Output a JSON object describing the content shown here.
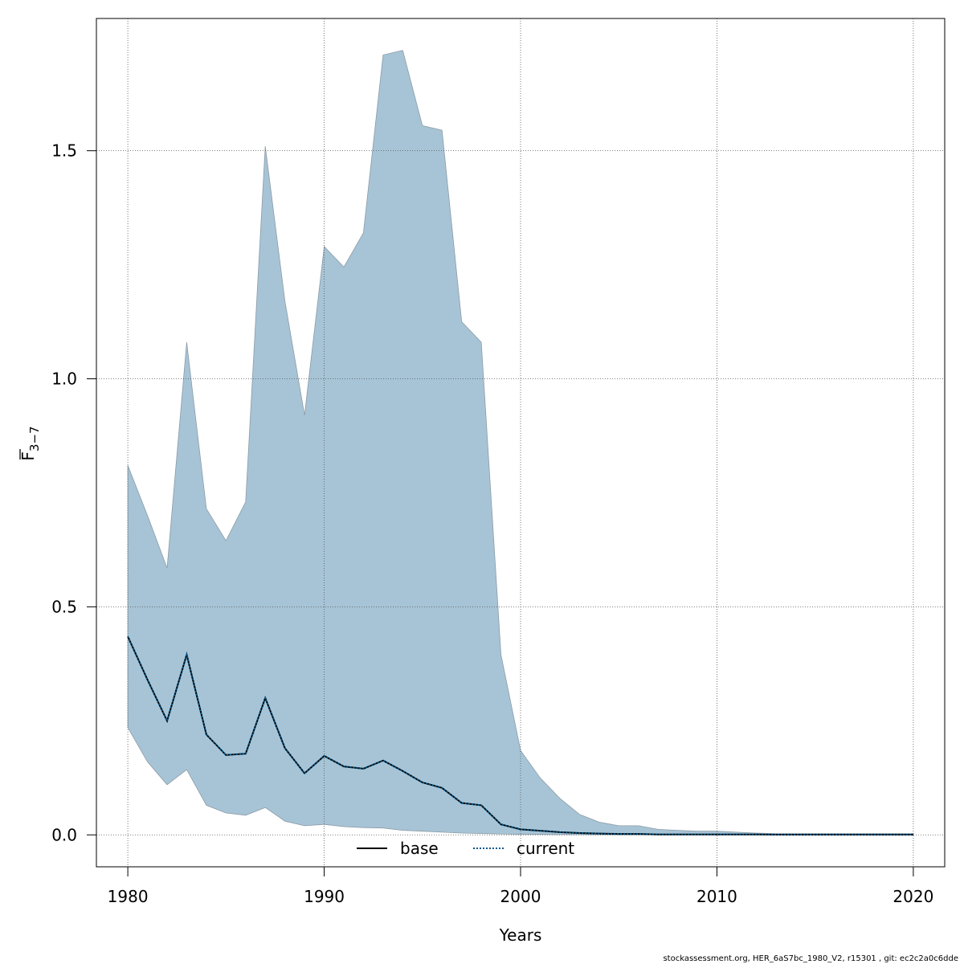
{
  "chart_data": {
    "type": "area",
    "xlabel": "Years",
    "ylabel": "F",
    "ylabel_subscript": "3−7",
    "xlim": [
      1978.4,
      2021.6
    ],
    "ylim": [
      -0.07,
      1.79
    ],
    "xticks": [
      1980,
      1990,
      2000,
      2010,
      2020
    ],
    "yticks": [
      0.0,
      0.5,
      1.0,
      1.5
    ],
    "ytick_labels": [
      "0.0",
      "0.5",
      "1.0",
      "1.5"
    ],
    "grid": true,
    "legend_position": "bottom-center",
    "colors": {
      "band": "#a7c4d6",
      "band_edge": "#8a9ba6",
      "current": "#00588c",
      "base": "#000000",
      "grid": "#555555"
    },
    "x": [
      1980,
      1981,
      1982,
      1983,
      1984,
      1985,
      1986,
      1987,
      1988,
      1989,
      1990,
      1991,
      1992,
      1993,
      1994,
      1995,
      1996,
      1997,
      1998,
      1999,
      2000,
      2001,
      2002,
      2003,
      2004,
      2005,
      2006,
      2007,
      2008,
      2009,
      2010,
      2011,
      2012,
      2013,
      2014,
      2015,
      2016,
      2017,
      2018,
      2019,
      2020
    ],
    "series": [
      {
        "name": "base",
        "style": "solid",
        "values": [
          0.435,
          0.34,
          0.25,
          0.395,
          0.22,
          0.175,
          0.178,
          0.3,
          0.19,
          0.135,
          0.173,
          0.15,
          0.145,
          0.163,
          0.14,
          0.115,
          0.103,
          0.07,
          0.065,
          0.023,
          0.012,
          0.009,
          0.006,
          0.004,
          0.003,
          0.002,
          0.002,
          0.001,
          0.001,
          0.001,
          0.001,
          0.001,
          0.001,
          0.0005,
          0.0005,
          0.0005,
          0.0005,
          0.0005,
          0.0005,
          0.0005,
          0.0005
        ]
      },
      {
        "name": "current",
        "style": "dotted",
        "values": [
          0.435,
          0.34,
          0.25,
          0.395,
          0.22,
          0.175,
          0.178,
          0.3,
          0.19,
          0.135,
          0.173,
          0.15,
          0.145,
          0.163,
          0.14,
          0.115,
          0.103,
          0.07,
          0.065,
          0.023,
          0.012,
          0.009,
          0.006,
          0.004,
          0.003,
          0.002,
          0.002,
          0.001,
          0.001,
          0.001,
          0.001,
          0.001,
          0.001,
          0.0005,
          0.0005,
          0.0005,
          0.0005,
          0.0005,
          0.0005,
          0.0005,
          0.0005
        ]
      }
    ],
    "band": {
      "upper": [
        0.81,
        0.7,
        0.585,
        1.08,
        0.715,
        0.645,
        0.73,
        1.51,
        1.17,
        0.92,
        1.29,
        1.245,
        1.32,
        1.71,
        1.72,
        1.555,
        1.545,
        1.125,
        1.08,
        0.395,
        0.185,
        0.125,
        0.08,
        0.045,
        0.028,
        0.02,
        0.02,
        0.012,
        0.01,
        0.008,
        0.008,
        0.006,
        0.004,
        0.003,
        0.003,
        0.003,
        0.003,
        0.003,
        0.003,
        0.003,
        0.003
      ],
      "lower": [
        0.235,
        0.16,
        0.11,
        0.143,
        0.065,
        0.048,
        0.043,
        0.06,
        0.03,
        0.02,
        0.023,
        0.018,
        0.016,
        0.015,
        0.01,
        0.008,
        0.006,
        0.004,
        0.003,
        0.002,
        0.001,
        0.001,
        0.0005,
        0.0005,
        0.0003,
        0.0003,
        0.0003,
        0.0002,
        0.0002,
        0.0002,
        0.0001,
        0.0001,
        0.0001,
        0.0001,
        0.0001,
        0.0001,
        0.0001,
        0.0001,
        0.0001,
        0.0001,
        0.0001
      ]
    }
  },
  "footer": "stockassessment.org, HER_6aS7bc_1980_V2, r15301 , git: ec2c2a0c6dde"
}
